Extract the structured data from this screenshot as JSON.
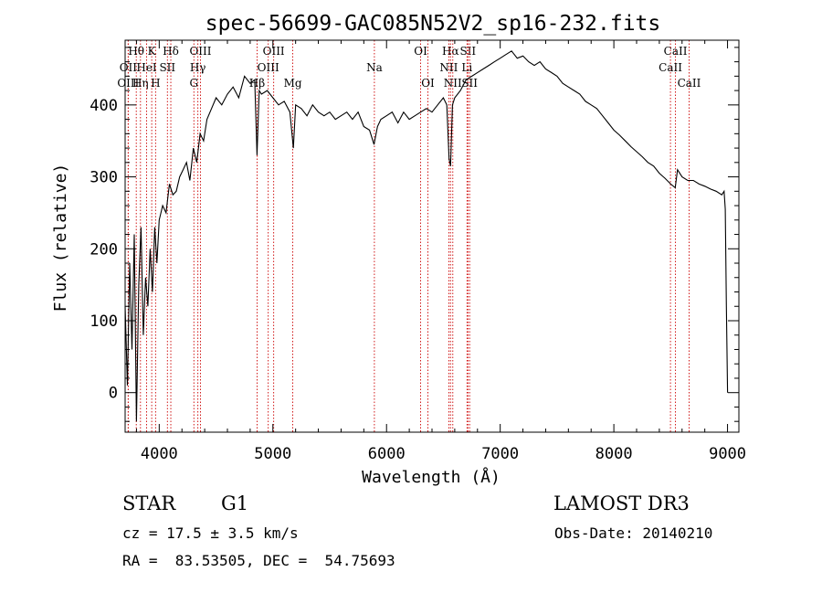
{
  "chart_data": {
    "type": "line",
    "title": "spec-56699-GAC085N52V2_sp16-232.fits",
    "xlabel": "Wavelength (Å)",
    "ylabel": "Flux (relative)",
    "xlim": [
      3700,
      9100
    ],
    "ylim": [
      -55,
      490
    ],
    "xticks": [
      4000,
      5000,
      6000,
      7000,
      8000,
      9000
    ],
    "yticks": [
      0,
      100,
      200,
      300,
      400
    ],
    "series": [
      {
        "name": "flux",
        "x": [
          3700,
          3720,
          3740,
          3760,
          3780,
          3800,
          3820,
          3840,
          3860,
          3880,
          3900,
          3920,
          3940,
          3960,
          3980,
          4000,
          4030,
          4060,
          4090,
          4120,
          4150,
          4180,
          4210,
          4240,
          4270,
          4300,
          4330,
          4360,
          4390,
          4420,
          4460,
          4500,
          4550,
          4600,
          4650,
          4700,
          4750,
          4800,
          4840,
          4860,
          4880,
          4900,
          4950,
          5000,
          5050,
          5100,
          5150,
          5180,
          5200,
          5250,
          5300,
          5350,
          5400,
          5450,
          5500,
          5550,
          5600,
          5650,
          5700,
          5750,
          5800,
          5850,
          5890,
          5920,
          5950,
          6000,
          6050,
          6100,
          6150,
          6200,
          6250,
          6300,
          6350,
          6400,
          6450,
          6500,
          6530,
          6550,
          6563,
          6580,
          6600,
          6650,
          6700,
          6750,
          6800,
          6850,
          6900,
          6950,
          7000,
          7050,
          7100,
          7150,
          7200,
          7250,
          7300,
          7350,
          7400,
          7450,
          7500,
          7550,
          7600,
          7650,
          7700,
          7750,
          7800,
          7850,
          7900,
          7950,
          8000,
          8050,
          8100,
          8150,
          8200,
          8250,
          8300,
          8350,
          8400,
          8450,
          8500,
          8540,
          8560,
          8600,
          8650,
          8700,
          8750,
          8800,
          8850,
          8900,
          8950,
          8970,
          8980,
          8990,
          9000
        ],
        "values": [
          120,
          10,
          180,
          60,
          220,
          -40,
          150,
          230,
          80,
          160,
          120,
          200,
          140,
          230,
          180,
          240,
          260,
          250,
          290,
          275,
          280,
          300,
          310,
          320,
          295,
          340,
          320,
          360,
          350,
          380,
          395,
          410,
          400,
          415,
          425,
          410,
          440,
          430,
          435,
          330,
          420,
          415,
          420,
          410,
          400,
          405,
          390,
          340,
          400,
          395,
          385,
          400,
          390,
          385,
          390,
          380,
          385,
          390,
          380,
          390,
          370,
          365,
          345,
          370,
          380,
          385,
          390,
          375,
          390,
          380,
          385,
          390,
          395,
          390,
          400,
          410,
          400,
          325,
          315,
          400,
          410,
          420,
          435,
          440,
          445,
          450,
          455,
          460,
          465,
          470,
          475,
          465,
          468,
          460,
          455,
          460,
          450,
          445,
          440,
          430,
          425,
          420,
          415,
          405,
          400,
          395,
          385,
          375,
          365,
          358,
          350,
          342,
          335,
          328,
          320,
          315,
          305,
          298,
          290,
          285,
          310,
          300,
          295,
          295,
          290,
          287,
          283,
          280,
          275,
          280,
          255,
          120,
          0
        ]
      }
    ],
    "line_markers": [
      {
        "label": "Hθ",
        "x": 3798,
        "row": 0
      },
      {
        "label": "OII",
        "x": 3727,
        "row": 1
      },
      {
        "label": "OIII",
        "x": 3727,
        "row": 2
      },
      {
        "label": "K",
        "x": 3934,
        "row": 0
      },
      {
        "label": "HeI",
        "x": 3889,
        "row": 1
      },
      {
        "label": "Hη",
        "x": 3835,
        "row": 2
      },
      {
        "label": "SII",
        "x": 4072,
        "row": 1
      },
      {
        "label": "H",
        "x": 3968,
        "row": 2
      },
      {
        "label": "Hδ",
        "x": 4102,
        "row": 0
      },
      {
        "label": "OIII",
        "x": 4363,
        "row": 0
      },
      {
        "label": "Hγ",
        "x": 4340,
        "row": 1
      },
      {
        "label": "G",
        "x": 4305,
        "row": 2
      },
      {
        "label": "OIII",
        "x": 5007,
        "row": 0
      },
      {
        "label": "OIII",
        "x": 4959,
        "row": 1
      },
      {
        "label": "Hβ",
        "x": 4861,
        "row": 2
      },
      {
        "label": "Mg",
        "x": 5175,
        "row": 2
      },
      {
        "label": "Na",
        "x": 5893,
        "row": 1
      },
      {
        "label": "OI",
        "x": 6300,
        "row": 0
      },
      {
        "label": "OI",
        "x": 6364,
        "row": 2
      },
      {
        "label": "Hα",
        "x": 6563,
        "row": 0
      },
      {
        "label": "SII",
        "x": 6716,
        "row": 0
      },
      {
        "label": "NII",
        "x": 6548,
        "row": 1
      },
      {
        "label": "Li",
        "x": 6708,
        "row": 1
      },
      {
        "label": "NII",
        "x": 6583,
        "row": 2
      },
      {
        "label": "SII",
        "x": 6731,
        "row": 2
      },
      {
        "label": "CaII",
        "x": 8542,
        "row": 0
      },
      {
        "label": "CaII",
        "x": 8498,
        "row": 1
      },
      {
        "label": "CaII",
        "x": 8662,
        "row": 2
      }
    ]
  },
  "info": {
    "object_class": "STAR",
    "subclass": "G1",
    "cz": "cz = 17.5 ± 3.5 km/s",
    "coords": "RA =  83.53505, DEC =  54.75693",
    "survey": "LAMOST DR3",
    "obs_date": "Obs-Date: 20140210"
  }
}
